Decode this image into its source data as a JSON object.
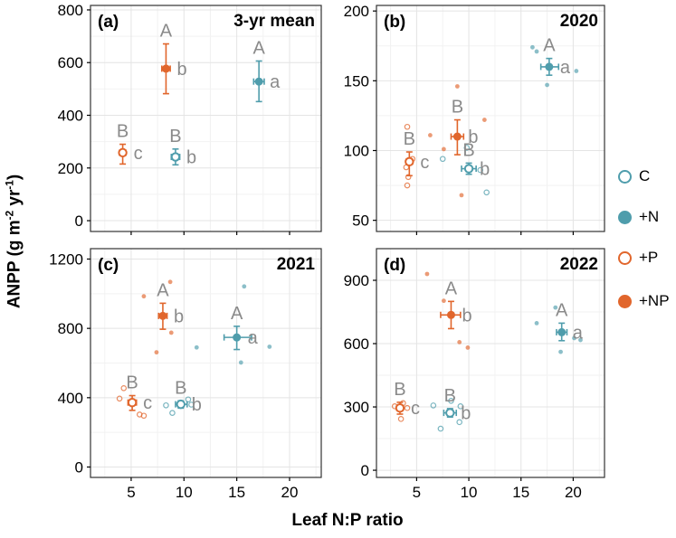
{
  "figure": {
    "x_axis_label": "Leaf N:P ratio",
    "y_axis_label": {
      "pre": "ANPP (g m",
      "sup1": "-2",
      "mid": " yr",
      "sup2": "-1",
      "post": ")"
    }
  },
  "colors": {
    "teal": "#4F9DAC",
    "orange": "#E1662C",
    "letter": "#8A8A8A",
    "grid_major": "#E4E4E4",
    "grid_minor": "#F2F2F2",
    "border": "#333333",
    "tick": "#000000"
  },
  "legend": {
    "items": [
      {
        "label": "C",
        "color": "teal",
        "filled": false
      },
      {
        "label": "+N",
        "color": "teal",
        "filled": true
      },
      {
        "label": "+P",
        "color": "orange",
        "filled": false
      },
      {
        "label": "+NP",
        "color": "orange",
        "filled": true
      }
    ]
  },
  "chart_data": {
    "type": "scatter",
    "xlabel": "Leaf N:P ratio",
    "ylabel": "ANPP (g m-2 yr-1)",
    "legend_position": "right",
    "grid": true,
    "panels": [
      {
        "id": "a",
        "tag": "(a)",
        "title": "3-yr mean",
        "xlim": [
          1.15,
          23
        ],
        "xticks": [
          5,
          10,
          15,
          20
        ],
        "show_x_labels": false,
        "ylim": [
          -41,
          817
        ],
        "yticks": [
          0,
          200,
          400,
          600,
          800
        ],
        "groups": [
          {
            "name": "+P",
            "color": "orange",
            "filled": false,
            "mean": {
              "x": 4.2,
              "y": 258
            },
            "y_err": [
              215,
              290
            ],
            "x_err": [
              3.9,
              4.5
            ],
            "letter_upper": "B",
            "letter_lower": "c",
            "points": []
          },
          {
            "name": "C",
            "color": "teal",
            "filled": false,
            "mean": {
              "x": 9.2,
              "y": 242
            },
            "y_err": [
              212,
              272
            ],
            "x_err": [
              8.8,
              9.6
            ],
            "letter_upper": "B",
            "letter_lower": "b",
            "points": []
          },
          {
            "name": "+NP",
            "color": "orange",
            "filled": true,
            "mean": {
              "x": 8.3,
              "y": 577
            },
            "y_err": [
              482,
              671
            ],
            "x_err": [
              7.9,
              8.7
            ],
            "letter_upper": "A",
            "letter_lower": "b",
            "points": []
          },
          {
            "name": "+N",
            "color": "teal",
            "filled": true,
            "mean": {
              "x": 17.1,
              "y": 528
            },
            "y_err": [
              452,
              606
            ],
            "x_err": [
              16.6,
              17.6
            ],
            "letter_upper": "A",
            "letter_lower": "a",
            "points": []
          }
        ]
      },
      {
        "id": "b",
        "tag": "(b)",
        "title": "2020",
        "xlim": [
          1.15,
          23
        ],
        "xticks": [
          5,
          10,
          15,
          20
        ],
        "show_x_labels": false,
        "ylim": [
          42,
          204
        ],
        "yticks": [
          50,
          100,
          150,
          200
        ],
        "groups": [
          {
            "name": "+P",
            "color": "orange",
            "filled": false,
            "mean": {
              "x": 4.3,
              "y": 92
            },
            "y_err": [
              82,
              99
            ],
            "x_err": [
              4.0,
              4.6
            ],
            "letter_upper": "B",
            "letter_lower": "c",
            "points": [
              [
                4.1,
                117
              ],
              [
                4.6,
                94
              ],
              [
                4.0,
                88
              ],
              [
                4.2,
                81
              ],
              [
                4.1,
                75
              ]
            ]
          },
          {
            "name": "C",
            "color": "teal",
            "filled": false,
            "mean": {
              "x": 10.0,
              "y": 87
            },
            "y_err": [
              83,
              91
            ],
            "x_err": [
              9.3,
              10.7
            ],
            "letter_upper": "B",
            "letter_lower": "b",
            "points": [
              [
                7.5,
                94
              ],
              [
                9.8,
                102
              ],
              [
                11.1,
                86
              ],
              [
                11.7,
                70
              ]
            ]
          },
          {
            "name": "+NP",
            "color": "orange",
            "filled": true,
            "mean": {
              "x": 8.9,
              "y": 110
            },
            "y_err": [
              97,
              122
            ],
            "x_err": [
              8.3,
              9.5
            ],
            "letter_upper": "B",
            "letter_lower": "b",
            "points": [
              [
                8.9,
                146
              ],
              [
                6.3,
                111
              ],
              [
                7.6,
                101
              ],
              [
                11.5,
                122
              ],
              [
                9.3,
                68
              ]
            ]
          },
          {
            "name": "+N",
            "color": "teal",
            "filled": true,
            "mean": {
              "x": 17.7,
              "y": 160
            },
            "y_err": [
              154,
              166
            ],
            "x_err": [
              16.9,
              18.6
            ],
            "letter_upper": "A",
            "letter_lower": "a",
            "points": [
              [
                16.1,
                174
              ],
              [
                16.5,
                171
              ],
              [
                20.3,
                157
              ],
              [
                17.5,
                147
              ]
            ]
          }
        ]
      },
      {
        "id": "c",
        "tag": "(c)",
        "title": "2021",
        "xlim": [
          1.15,
          23
        ],
        "xticks": [
          5,
          10,
          15,
          20
        ],
        "show_x_labels": true,
        "ylim": [
          -60,
          1260
        ],
        "yticks": [
          0,
          400,
          800,
          1200
        ],
        "groups": [
          {
            "name": "+P",
            "color": "orange",
            "filled": false,
            "mean": {
              "x": 5.1,
              "y": 372
            },
            "y_err": [
              327,
              412
            ],
            "x_err": [
              4.7,
              5.5
            ],
            "letter_upper": "B",
            "letter_lower": "c",
            "points": [
              [
                4.3,
                455
              ],
              [
                3.9,
                395
              ],
              [
                5.8,
                303
              ],
              [
                6.2,
                296
              ]
            ]
          },
          {
            "name": "C",
            "color": "teal",
            "filled": false,
            "mean": {
              "x": 9.7,
              "y": 362
            },
            "y_err": [
              340,
              382
            ],
            "x_err": [
              9.2,
              10.3
            ],
            "letter_upper": "B",
            "letter_lower": "b",
            "points": [
              [
                8.3,
                356
              ],
              [
                8.9,
                312
              ],
              [
                10.4,
                390
              ],
              [
                10.7,
                360
              ]
            ]
          },
          {
            "name": "+NP",
            "color": "orange",
            "filled": true,
            "mean": {
              "x": 8.0,
              "y": 872
            },
            "y_err": [
              795,
              945
            ],
            "x_err": [
              7.6,
              8.4
            ],
            "letter_upper": "A",
            "letter_lower": "b",
            "points": [
              [
                8.7,
                1068
              ],
              [
                6.2,
                985
              ],
              [
                8.8,
                775
              ],
              [
                7.4,
                662
              ]
            ]
          },
          {
            "name": "+N",
            "color": "teal",
            "filled": true,
            "mean": {
              "x": 15.0,
              "y": 748
            },
            "y_err": [
              678,
              812
            ],
            "x_err": [
              13.8,
              16.4
            ],
            "letter_upper": "A",
            "letter_lower": "a",
            "points": [
              [
                15.7,
                1042
              ],
              [
                11.2,
                690
              ],
              [
                18.1,
                694
              ],
              [
                15.4,
                603
              ]
            ]
          }
        ]
      },
      {
        "id": "d",
        "tag": "(d)",
        "title": "2022",
        "xlim": [
          1.15,
          23
        ],
        "xticks": [
          5,
          10,
          15,
          20
        ],
        "show_x_labels": true,
        "ylim": [
          -34,
          1050
        ],
        "yticks": [
          0,
          300,
          600,
          900
        ],
        "groups": [
          {
            "name": "+P",
            "color": "orange",
            "filled": false,
            "mean": {
              "x": 3.4,
              "y": 295
            },
            "y_err": [
              266,
              322
            ],
            "x_err": [
              3.1,
              3.7
            ],
            "letter_upper": "B",
            "letter_lower": "c",
            "points": [
              [
                2.9,
                303
              ],
              [
                3.7,
                318
              ],
              [
                4.1,
                295
              ],
              [
                3.5,
                243
              ]
            ]
          },
          {
            "name": "C",
            "color": "teal",
            "filled": false,
            "mean": {
              "x": 8.2,
              "y": 272
            },
            "y_err": [
              252,
              292
            ],
            "x_err": [
              7.6,
              8.8
            ],
            "letter_upper": "B",
            "letter_lower": "b",
            "points": [
              [
                6.6,
                307
              ],
              [
                8.3,
                329
              ],
              [
                9.2,
                303
              ],
              [
                9.1,
                228
              ],
              [
                7.3,
                197
              ]
            ]
          },
          {
            "name": "+NP",
            "color": "orange",
            "filled": true,
            "mean": {
              "x": 8.3,
              "y": 736
            },
            "y_err": [
              671,
              800
            ],
            "x_err": [
              7.3,
              9.2
            ],
            "letter_upper": "A",
            "letter_lower": "b",
            "points": [
              [
                6.0,
                930
              ],
              [
                7.6,
                803
              ],
              [
                9.1,
                607
              ],
              [
                9.9,
                581
              ]
            ]
          },
          {
            "name": "+N",
            "color": "teal",
            "filled": true,
            "mean": {
              "x": 18.9,
              "y": 654
            },
            "y_err": [
              614,
              697
            ],
            "x_err": [
              18.4,
              19.4
            ],
            "letter_upper": "A",
            "letter_lower": "a",
            "points": [
              [
                18.3,
                771
              ],
              [
                16.5,
                697
              ],
              [
                20.1,
                626
              ],
              [
                20.7,
                617
              ],
              [
                18.8,
                561
              ]
            ]
          }
        ]
      }
    ]
  }
}
